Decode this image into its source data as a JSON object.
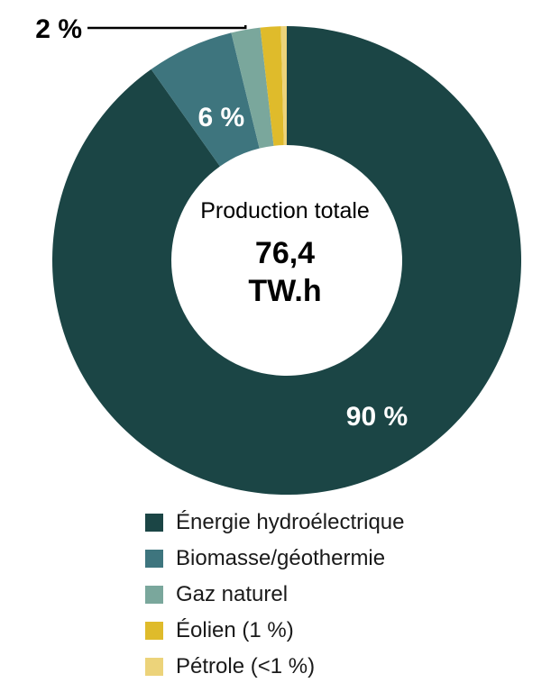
{
  "chart_data": {
    "type": "pie",
    "donut": true,
    "center_caption": "Production totale",
    "center_value_line1": "76,4",
    "center_value_line2": "TW.h",
    "slices": [
      {
        "label": "Énergie hydroélectrique",
        "value": 90,
        "color": "#1b4545"
      },
      {
        "label": "Biomasse/géothermie",
        "value": 6,
        "color": "#3e757e"
      },
      {
        "label": "Gaz naturel",
        "value": 2,
        "color": "#7aa79c"
      },
      {
        "label": "Éolien (1 %)",
        "value": 1.4,
        "color": "#dfbb2b"
      },
      {
        "label": "Pétrole (<1 %)",
        "value": 0.4,
        "color": "#ecd37a"
      }
    ],
    "data_labels": [
      {
        "slice": 0,
        "text": "90 %"
      },
      {
        "slice": 1,
        "text": "6 %"
      },
      {
        "slice": 2,
        "text": "2 %"
      }
    ],
    "legend_position": "bottom"
  }
}
